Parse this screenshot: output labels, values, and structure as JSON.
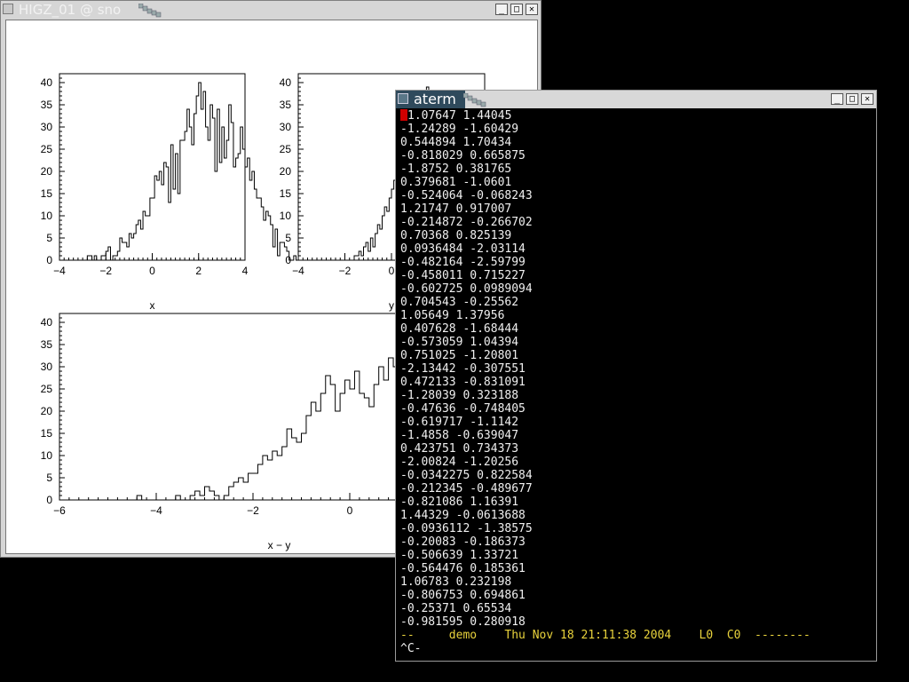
{
  "higz": {
    "title": "HIGZ_01 @ sno",
    "plots": [
      {
        "xlabel": "x",
        "xlim": [
          -4,
          4
        ],
        "ylim": [
          0,
          42
        ],
        "xticks": [
          "−4",
          "−2",
          "0",
          "2",
          "4"
        ],
        "yticks": [
          "0",
          "5",
          "10",
          "15",
          "20",
          "25",
          "30",
          "35",
          "40"
        ],
        "bin_width": 0.1,
        "values": [
          0,
          0,
          0,
          0,
          0,
          0,
          0,
          0,
          0,
          0,
          0,
          0,
          1,
          1,
          0,
          1,
          0,
          0,
          1,
          1,
          2,
          3,
          0,
          1,
          1,
          2,
          5,
          4,
          4,
          3,
          6,
          5,
          6,
          8,
          9,
          7,
          11,
          10,
          10,
          14,
          14,
          19,
          18,
          20,
          17,
          22,
          21,
          13,
          26,
          16,
          24,
          15,
          27,
          27,
          29,
          34,
          30,
          26,
          33,
          37,
          40,
          34,
          38,
          30,
          27,
          35,
          32,
          20,
          34,
          22,
          30,
          23,
          27,
          35,
          31,
          21,
          23,
          24,
          30,
          25,
          21,
          23,
          18,
          20,
          16,
          14,
          14,
          12,
          9,
          11,
          10,
          8,
          3,
          7,
          1,
          4,
          4,
          3,
          2,
          0,
          0,
          1,
          0,
          0,
          0,
          0,
          0,
          0,
          0,
          0,
          0
        ]
      },
      {
        "xlabel": "y",
        "xlim": [
          -4,
          4
        ],
        "ylim": [
          0,
          42
        ],
        "xticks": [
          "−4",
          "−2",
          "0"
        ],
        "yticks": [
          "0",
          "5",
          "10",
          "15",
          "20",
          "25",
          "30",
          "35",
          "40"
        ],
        "bin_width": 0.1,
        "values": [
          0,
          0,
          0,
          0,
          0,
          0,
          0,
          0,
          0,
          0,
          0,
          0,
          0,
          0,
          0,
          0,
          0,
          0,
          0,
          0,
          0,
          0,
          0,
          0,
          1,
          1,
          2,
          1,
          3,
          4,
          2,
          5,
          3,
          6,
          8,
          7,
          10,
          12,
          11,
          14,
          16,
          18,
          15,
          20,
          24,
          23,
          27,
          26,
          29,
          33,
          30,
          35,
          38,
          37,
          34,
          39,
          36
        ]
      },
      {
        "xlabel": "x − y",
        "xlim": [
          -6,
          4
        ],
        "ylim": [
          0,
          42
        ],
        "xticks": [
          "−6",
          "−4",
          "−2",
          "0",
          "2"
        ],
        "yticks": [
          "0",
          "5",
          "10",
          "15",
          "20",
          "25",
          "30",
          "35",
          "40"
        ],
        "bin_width": 0.1,
        "values": [
          0,
          0,
          0,
          0,
          0,
          0,
          0,
          0,
          0,
          0,
          0,
          0,
          0,
          0,
          0,
          0,
          1,
          0,
          0,
          0,
          0,
          0,
          0,
          0,
          1,
          0,
          0,
          1,
          2,
          1,
          3,
          2,
          1,
          0,
          1,
          3,
          4,
          5,
          4,
          6,
          6,
          8,
          10,
          9,
          11,
          10,
          12,
          16,
          14,
          13,
          15,
          19,
          22,
          20,
          24,
          28,
          26,
          20,
          24,
          27,
          25,
          29,
          24,
          23,
          21,
          26,
          30,
          27,
          32,
          30,
          25,
          35,
          28,
          33,
          36,
          38,
          39,
          34,
          30,
          40,
          28,
          34,
          31,
          35,
          30,
          33,
          24,
          29,
          25,
          22,
          20,
          24,
          26,
          20,
          12,
          10,
          8,
          10,
          13,
          10,
          9,
          15,
          13,
          5,
          2,
          10,
          5,
          3
        ]
      }
    ]
  },
  "aterm": {
    "title": "aterm",
    "lines": [
      "1.07647 1.44045",
      "-1.24289 -1.60429",
      "0.544894 1.70434",
      "-0.818029 0.665875",
      "-1.8752 0.381765",
      "0.379681 -1.0601",
      "-0.524064 -0.068243",
      "1.21747 0.917007",
      "-0.214872 -0.266702",
      "0.70368 0.825139",
      "0.0936484 -2.03114",
      "-0.482164 -2.59799",
      "-0.458011 0.715227",
      "-0.602725 0.0989094",
      "0.704543 -0.25562",
      "1.05649 1.37956",
      "0.407628 -1.68444",
      "-0.573059 1.04394",
      "0.751025 -1.20801",
      "-2.13442 -0.307551",
      "0.472133 -0.831091",
      "-1.28039 0.323188",
      "-0.47636 -0.748405",
      "-0.619717 -1.1142",
      "-1.4858 -0.639047",
      "0.423751 0.734373",
      "-2.00824 -1.20256",
      "-0.0342275 0.822584",
      "-0.212345 -0.489677",
      "-0.821086 1.16391",
      "1.44329 -0.0613688",
      "-0.0936112 -1.38575",
      "-0.20083 -0.186373",
      "-0.506639 1.33721",
      "-0.564476 0.185361",
      "1.06783 0.232198",
      "-0.806753 0.694861",
      "-0.25371 0.65534",
      "-0.981595 0.280918"
    ],
    "status_line": "--     demo    Thu Nov 18 21:11:38 2004    L0  C0  --------",
    "prompt": "^C-"
  },
  "colors": {
    "desktop": "#000000",
    "status_text": "#e8d23c",
    "cursor": "#d00000",
    "terminal_text": "#f0f0f0"
  }
}
